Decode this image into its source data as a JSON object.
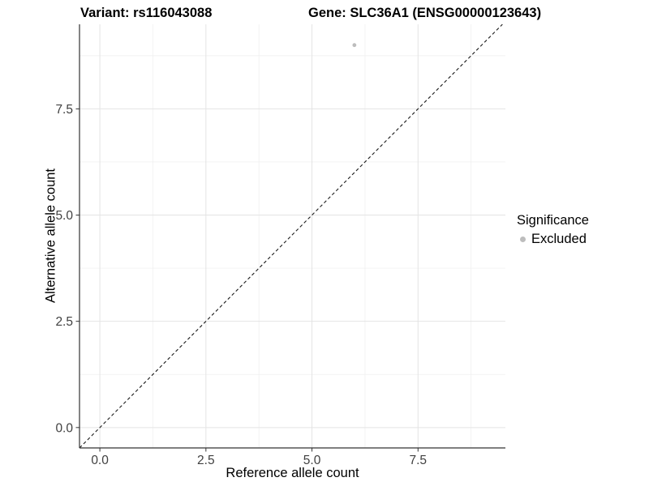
{
  "header": {
    "variant_title": "Variant: rs116043088",
    "gene_title": "Gene: SLC36A1 (ENSG00000123643)"
  },
  "legend": {
    "title": "Significance",
    "entries": [
      {
        "label": "Excluded",
        "color": "#bdbdbd"
      }
    ]
  },
  "chart_data": {
    "type": "scatter",
    "title": "Variant: rs116043088 | Gene: SLC36A1 (ENSG00000123643)",
    "xlabel": "Reference allele count",
    "ylabel": "Alternative allele count",
    "xlim": [
      -0.48,
      9.56
    ],
    "ylim": [
      -0.48,
      9.49
    ],
    "x_ticks": {
      "values": [
        0,
        2.5,
        5,
        7.5
      ],
      "labels": [
        "0.0",
        "2.5",
        "5.0",
        "7.5"
      ]
    },
    "y_ticks": {
      "values": [
        0,
        2.5,
        5,
        7.5
      ],
      "labels": [
        "0.0",
        "2.5",
        "5.0",
        "7.5"
      ]
    },
    "x_minor_ticks": [
      1.25,
      3.75,
      6.25,
      8.75
    ],
    "y_minor_ticks": [
      1.25,
      3.75,
      6.25,
      8.75
    ],
    "grid": true,
    "legend_position": "right",
    "series": [
      {
        "name": "Excluded",
        "color": "#bdbdbd",
        "marker": "circle",
        "points": [
          {
            "x": 6,
            "y": 9
          }
        ]
      }
    ],
    "reference_line": {
      "kind": "identity",
      "slope": 1,
      "intercept": 0,
      "linestyle": "dashed",
      "color": "#1a1a1a"
    },
    "style": {
      "background": "#ffffff",
      "grid_major_color": "#e4e4e4",
      "grid_minor_color": "#f0f0f0",
      "axis_line_color": "#333333",
      "tick_color": "#333333",
      "tick_label_color": "#404040",
      "point_radius": 2.4
    }
  }
}
